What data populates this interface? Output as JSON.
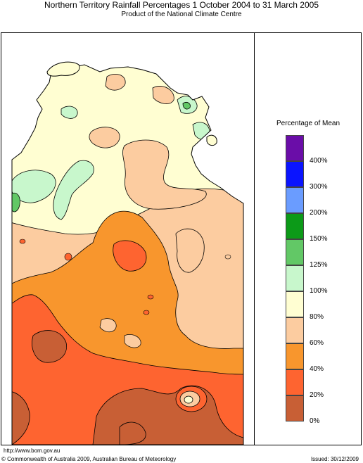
{
  "header": {
    "title": "Northern Territory Rainfall Percentages 1 October 2004 to 31 March 2005",
    "subtitle": "Product of the National Climate Centre"
  },
  "legend": {
    "title": "Percentage of Mean",
    "bands": [
      {
        "color": "#6a0da8",
        "label": "400%"
      },
      {
        "color": "#0a14ff",
        "label": "300%"
      },
      {
        "color": "#6a9cff",
        "label": "200%"
      },
      {
        "color": "#0c9a18",
        "label": "150%"
      },
      {
        "color": "#62c866",
        "label": "125%"
      },
      {
        "color": "#c8f7cc",
        "label": "100%"
      },
      {
        "color": "#fffed2",
        "label": "80%"
      },
      {
        "color": "#fccca0",
        "label": "60%"
      },
      {
        "color": "#f8962d",
        "label": "40%"
      },
      {
        "color": "#fe6430",
        "label": "20%"
      },
      {
        "color": "#c85f35",
        "label": "0%"
      }
    ]
  },
  "footer": {
    "url": "http://www.bom.gov.au",
    "copyright": "© Commonwealth of Australia 2009, Australian Bureau of Meteorology",
    "issued": "Issued: 30/12/2009"
  },
  "map": {
    "region": "Northern Territory",
    "colors": {
      "pct_0_20": "#c85f35",
      "pct_20_40": "#fe6430",
      "pct_40_60": "#f8962d",
      "pct_60_80": "#fccca0",
      "pct_80_100": "#fffed2",
      "pct_100_125": "#c8f7cc",
      "pct_125_150": "#62c866"
    }
  }
}
